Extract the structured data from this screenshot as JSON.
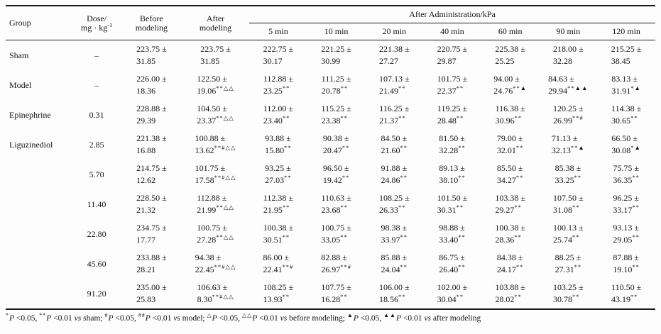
{
  "table": {
    "header": {
      "group": "Group",
      "dose": {
        "line1": "Dose/",
        "unit": "mg · kg",
        "exp": "-1"
      },
      "before": [
        "Before",
        "modeling"
      ],
      "after": [
        "After",
        "modeling"
      ],
      "admin": "After Administration/kPa",
      "times": [
        "5 min",
        "10 min",
        "20 min",
        "40 min",
        "60 min",
        "90 min",
        "120 min"
      ]
    },
    "rows": [
      {
        "group": "Sham",
        "dose": "–",
        "cells": [
          [
            "223.75 ±",
            "31.85",
            ""
          ],
          [
            "223.75 ±",
            "31.85",
            ""
          ],
          [
            "222.75 ±",
            "30.17",
            ""
          ],
          [
            "221.25 ±",
            "30.99",
            ""
          ],
          [
            "221.38 ±",
            "27.27",
            ""
          ],
          [
            "220.75 ±",
            "29.87",
            ""
          ],
          [
            "225.38 ±",
            "25.25",
            ""
          ],
          [
            "218.00 ±",
            "32.28",
            ""
          ],
          [
            "215.25 ±",
            "38.45",
            ""
          ]
        ]
      },
      {
        "group": "Model",
        "dose": "–",
        "cells": [
          [
            "226.00 ±",
            "18.36",
            ""
          ],
          [
            "122.50 ±",
            "19.06",
            "**△△"
          ],
          [
            "112.88 ±",
            "23.25",
            "**"
          ],
          [
            "111.25 ±",
            "20.78",
            "**"
          ],
          [
            "107.13 ±",
            "21.49",
            "**"
          ],
          [
            "101.75 ±",
            "22.37",
            "**"
          ],
          [
            "94.00 ±",
            "24.76",
            "**▲"
          ],
          [
            "84.63 ±",
            "29.94",
            "**▲▲"
          ],
          [
            "83.13 ±",
            "31.91",
            "*▲"
          ]
        ]
      },
      {
        "group": "Epinephrine",
        "dose": "0.31",
        "cells": [
          [
            "228.88 ±",
            "29.39",
            ""
          ],
          [
            "104.50 ±",
            "23.37",
            "**△△"
          ],
          [
            "112.00 ±",
            "23.40",
            "**"
          ],
          [
            "115.25 ±",
            "23.38",
            "**"
          ],
          [
            "116.25 ±",
            "21.37",
            "**"
          ],
          [
            "119.25 ±",
            "28.48",
            "**"
          ],
          [
            "116.38 ±",
            "30.96",
            "**"
          ],
          [
            "120.25 ±",
            "26.99",
            "**#"
          ],
          [
            "114.38 ±",
            "30.65",
            "**"
          ]
        ]
      },
      {
        "group": "Liguzinediol",
        "dose": "2.85",
        "cells": [
          [
            "221.38 ±",
            "16.88",
            ""
          ],
          [
            "100.88 ±",
            "13.62",
            "**#△△"
          ],
          [
            "93.88 ±",
            "15.80",
            "**"
          ],
          [
            "90.38 ±",
            "20.47",
            "**"
          ],
          [
            "84.50 ±",
            "21.60",
            "**"
          ],
          [
            "81.50 ±",
            "32.28",
            "**"
          ],
          [
            "79.00 ±",
            "32.01",
            "**"
          ],
          [
            "71.13 ±",
            "32.13",
            "**▲"
          ],
          [
            "66.50 ±",
            "30.08",
            "*▲"
          ]
        ]
      },
      {
        "group": "",
        "dose": "5.70",
        "cells": [
          [
            "214.75 ±",
            "12.62",
            ""
          ],
          [
            "101.75 ±",
            "17.58",
            "**#△△"
          ],
          [
            "93.25 ±",
            "27.03",
            "**"
          ],
          [
            "96.50 ±",
            "19.42",
            "**"
          ],
          [
            "91.88 ±",
            "24.86",
            "**"
          ],
          [
            "89.13 ±",
            "38.10",
            "**"
          ],
          [
            "85.50 ±",
            "34.27",
            "**"
          ],
          [
            "85.38 ±",
            "33.25",
            "**"
          ],
          [
            "75.75 ±",
            "36.35",
            "**"
          ]
        ]
      },
      {
        "group": "",
        "dose": "11.40",
        "cells": [
          [
            "228.50 ±",
            "21.32",
            ""
          ],
          [
            "112.88 ±",
            "21.99",
            "**△△"
          ],
          [
            "112.38 ±",
            "21.95",
            "**"
          ],
          [
            "110.63 ±",
            "23.68",
            "**"
          ],
          [
            "108.25 ±",
            "26.33",
            "**"
          ],
          [
            "101.50 ±",
            "30.31",
            "**"
          ],
          [
            "103.38 ±",
            "29.27",
            "**"
          ],
          [
            "107.50 ±",
            "31.08",
            "**"
          ],
          [
            "96.25 ±",
            "33.17",
            "**"
          ]
        ]
      },
      {
        "group": "",
        "dose": "22.80",
        "cells": [
          [
            "234.75 ±",
            "17.77",
            ""
          ],
          [
            "100.75 ±",
            "27.28",
            "**△△"
          ],
          [
            "100.38 ±",
            "30.51",
            "**"
          ],
          [
            "100.75 ±",
            "33.05",
            "**"
          ],
          [
            "98.38 ±",
            "33.97",
            "**"
          ],
          [
            "98.88 ±",
            "33.40",
            "**"
          ],
          [
            "100.38 ±",
            "28.36",
            "**"
          ],
          [
            "100.13 ±",
            "25.74",
            "**"
          ],
          [
            "93.13 ±",
            "29.05",
            "**"
          ]
        ]
      },
      {
        "group": "",
        "dose": "45.60",
        "cells": [
          [
            "233.88 ±",
            "28.21",
            ""
          ],
          [
            "94.38 ±",
            "22.45",
            "**#△△"
          ],
          [
            "86.00 ±",
            "22.41",
            "**#"
          ],
          [
            "82.88 ±",
            "26.97",
            "**#"
          ],
          [
            "85.88 ±",
            "24.04",
            "**"
          ],
          [
            "86.75 ±",
            "26.40",
            "**"
          ],
          [
            "84.38 ±",
            "24.17",
            "**"
          ],
          [
            "88.25 ±",
            "27.31",
            "**"
          ],
          [
            "87.88 ±",
            "19.10",
            "**"
          ]
        ]
      },
      {
        "group": "",
        "dose": "91.20",
        "cells": [
          [
            "235.00 ±",
            "25.83",
            ""
          ],
          [
            "106.63 ±",
            "8.30",
            "**#△△"
          ],
          [
            "108.25 ±",
            "13.93",
            "**"
          ],
          [
            "107.75 ±",
            "16.28",
            "**"
          ],
          [
            "106.00 ±",
            "18.56",
            "**"
          ],
          [
            "102.00 ±",
            "30.04",
            "**"
          ],
          [
            "103.88 ±",
            "28.02",
            "**"
          ],
          [
            "103.25 ±",
            "30.78",
            "**"
          ],
          [
            "110.50 ±",
            "43.19",
            "**"
          ]
        ]
      }
    ],
    "footnote": [
      [
        "sup",
        "*"
      ],
      [
        "i",
        "P"
      ],
      [
        "t",
        " <0.05, "
      ],
      [
        "sup",
        "**"
      ],
      [
        "i",
        "P"
      ],
      [
        "t",
        " <0.01 "
      ],
      [
        "i",
        "vs"
      ],
      [
        "t",
        " sham; "
      ],
      [
        "sup",
        "#"
      ],
      [
        "i",
        "P"
      ],
      [
        "t",
        " <0.05, "
      ],
      [
        "sup",
        "##"
      ],
      [
        "i",
        "P"
      ],
      [
        "t",
        " <0.01 "
      ],
      [
        "i",
        "vs"
      ],
      [
        "t",
        " model; "
      ],
      [
        "sup",
        "△"
      ],
      [
        "i",
        "P"
      ],
      [
        "t",
        " <0.05, "
      ],
      [
        "sup",
        "△△"
      ],
      [
        "i",
        "P"
      ],
      [
        "t",
        " <0.01 "
      ],
      [
        "i",
        "vs"
      ],
      [
        "t",
        " before modeling; "
      ],
      [
        "sup",
        "▲"
      ],
      [
        "i",
        "P"
      ],
      [
        "t",
        " <0.05, "
      ],
      [
        "sup",
        "▲▲"
      ],
      [
        "i",
        "P"
      ],
      [
        "t",
        " <0.01 "
      ],
      [
        "i",
        "vs"
      ],
      [
        "t",
        " after modeling"
      ]
    ]
  }
}
